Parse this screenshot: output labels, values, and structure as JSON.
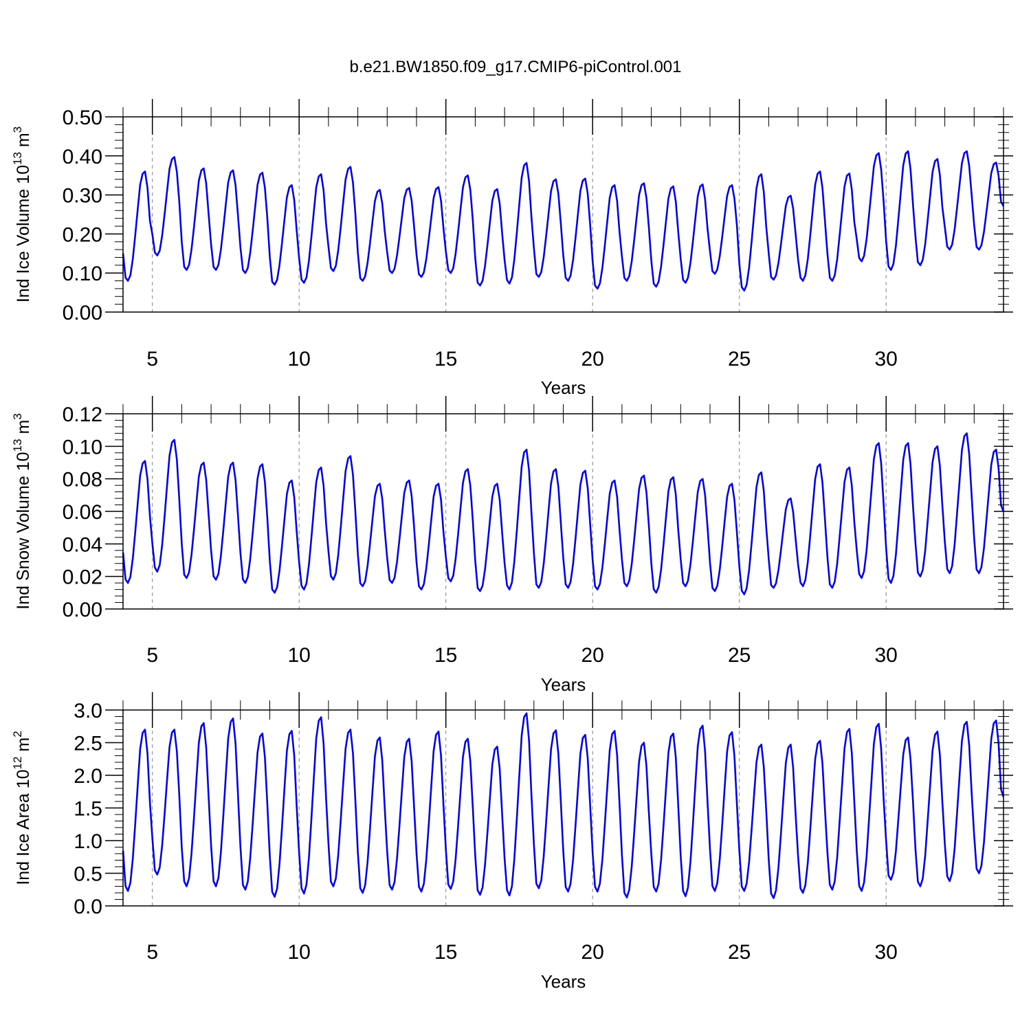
{
  "title": "b.e21.BW1850.f09_g17.CMIP6-piControl.001",
  "colors": {
    "line": "#0000ff",
    "axis": "#000000",
    "grid": "#808080"
  },
  "chart_data": [
    {
      "type": "line",
      "ylabel_prefix": "Ind Ice Volume 10",
      "ylabel_exp": "13",
      "ylabel_unit": "m",
      "ylabel_unit_exp": "3",
      "xlabel": "Years",
      "xlim": [
        4,
        34
      ],
      "ylim": [
        0,
        0.5
      ],
      "xticks": [
        5,
        10,
        15,
        20,
        25,
        30
      ],
      "xtick_labels": [
        "5",
        "10",
        "15",
        "20",
        "25",
        "30"
      ],
      "yticks": [
        0,
        0.1,
        0.2,
        0.3,
        0.4,
        0.5
      ],
      "ytick_labels": [
        "0.00",
        "0.10",
        "0.20",
        "0.30",
        "0.40",
        "0.50"
      ],
      "vertical_grid": "dashed at major x ticks",
      "series": [
        {
          "x_start": 4.0,
          "dx": 0.08333,
          "min": [
            0.08,
            0.145,
            0.108,
            0.108,
            0.1,
            0.07,
            0.075,
            0.105,
            0.08,
            0.1,
            0.09,
            0.1,
            0.068,
            0.073,
            0.09,
            0.08,
            0.06,
            0.08,
            0.065,
            0.075,
            0.098,
            0.055,
            0.083,
            0.08,
            0.08,
            0.13,
            0.108,
            0.12,
            0.16,
            0.16
          ],
          "max": [
            0.36,
            0.397,
            0.368,
            0.363,
            0.357,
            0.325,
            0.353,
            0.372,
            0.313,
            0.318,
            0.32,
            0.35,
            0.315,
            0.382,
            0.34,
            0.342,
            0.325,
            0.33,
            0.322,
            0.327,
            0.325,
            0.353,
            0.298,
            0.36,
            0.355,
            0.407,
            0.412,
            0.392,
            0.412,
            0.383
          ]
        }
      ]
    },
    {
      "type": "line",
      "ylabel_prefix": "Ind Snow Volume 10",
      "ylabel_exp": "13",
      "ylabel_unit": "m",
      "ylabel_unit_exp": "3",
      "xlabel": "Years",
      "xlim": [
        4,
        34
      ],
      "ylim": [
        0,
        0.12
      ],
      "xticks": [
        5,
        10,
        15,
        20,
        25,
        30
      ],
      "xtick_labels": [
        "5",
        "10",
        "15",
        "20",
        "25",
        "30"
      ],
      "yticks": [
        0,
        0.02,
        0.04,
        0.06,
        0.08,
        0.1,
        0.12
      ],
      "ytick_labels": [
        "0.00",
        "0.02",
        "0.04",
        "0.06",
        "0.08",
        "0.10",
        "0.12"
      ],
      "vertical_grid": "dashed at major x ticks",
      "series": [
        {
          "x_start": 4.0,
          "dx": 0.08333,
          "min": [
            0.016,
            0.023,
            0.019,
            0.018,
            0.016,
            0.01,
            0.012,
            0.018,
            0.014,
            0.016,
            0.012,
            0.017,
            0.011,
            0.012,
            0.013,
            0.013,
            0.012,
            0.014,
            0.01,
            0.014,
            0.011,
            0.009,
            0.013,
            0.014,
            0.013,
            0.019,
            0.016,
            0.02,
            0.022,
            0.022
          ],
          "max": [
            0.091,
            0.104,
            0.09,
            0.09,
            0.089,
            0.079,
            0.087,
            0.094,
            0.077,
            0.079,
            0.077,
            0.086,
            0.077,
            0.098,
            0.086,
            0.085,
            0.079,
            0.082,
            0.081,
            0.08,
            0.077,
            0.084,
            0.068,
            0.089,
            0.087,
            0.102,
            0.102,
            0.1,
            0.108,
            0.098
          ]
        }
      ]
    },
    {
      "type": "line",
      "ylabel_prefix": "Ind Ice Area 10",
      "ylabel_exp": "12",
      "ylabel_unit": "m",
      "ylabel_unit_exp": "2",
      "xlabel": "Years",
      "xlim": [
        4,
        34
      ],
      "ylim": [
        0,
        3.0
      ],
      "xticks": [
        5,
        10,
        15,
        20,
        25,
        30
      ],
      "xtick_labels": [
        "5",
        "10",
        "15",
        "20",
        "25",
        "30"
      ],
      "yticks": [
        0,
        0.5,
        1.0,
        1.5,
        2.0,
        2.5,
        3.0
      ],
      "ytick_labels": [
        "0.0",
        "0.5",
        "1.0",
        "1.5",
        "2.0",
        "2.5",
        "3.0"
      ],
      "vertical_grid": "dashed at major x ticks",
      "series": [
        {
          "x_start": 4.0,
          "dx": 0.08333,
          "min": [
            0.23,
            0.48,
            0.3,
            0.3,
            0.25,
            0.14,
            0.19,
            0.3,
            0.2,
            0.25,
            0.22,
            0.26,
            0.17,
            0.16,
            0.27,
            0.22,
            0.22,
            0.13,
            0.22,
            0.15,
            0.23,
            0.23,
            0.12,
            0.2,
            0.25,
            0.23,
            0.4,
            0.3,
            0.38,
            0.5
          ],
          "max": [
            2.7,
            2.7,
            2.8,
            2.87,
            2.64,
            2.68,
            2.89,
            2.7,
            2.58,
            2.56,
            2.67,
            2.56,
            2.44,
            2.95,
            2.69,
            2.62,
            2.68,
            2.5,
            2.64,
            2.76,
            2.66,
            2.47,
            2.47,
            2.53,
            2.71,
            2.79,
            2.58,
            2.67,
            2.82,
            2.84
          ]
        }
      ]
    }
  ]
}
